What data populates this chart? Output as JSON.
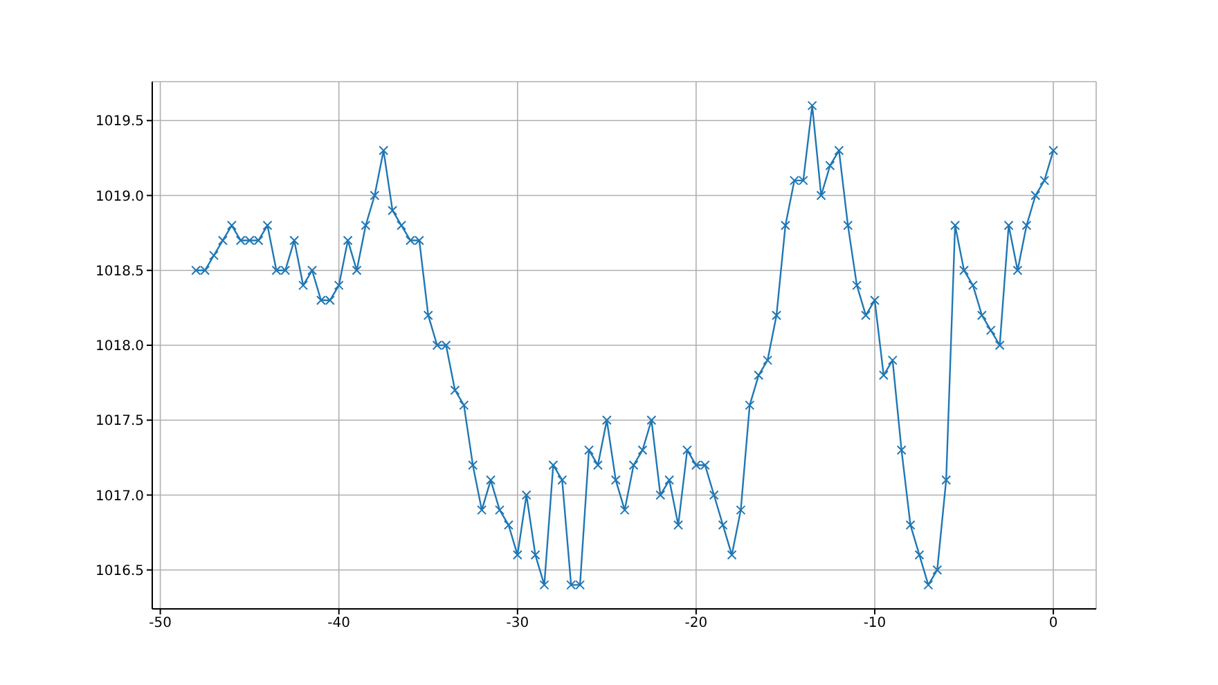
{
  "chart_data": {
    "type": "line",
    "x": [
      -48,
      -47.5,
      -47,
      -46.5,
      -46,
      -45.5,
      -45,
      -44.5,
      -44,
      -43.5,
      -43,
      -42.5,
      -42,
      -41.5,
      -41,
      -40.5,
      -40,
      -39.5,
      -39,
      -38.5,
      -38,
      -37.5,
      -37,
      -36.5,
      -36,
      -35.5,
      -35,
      -34.5,
      -34,
      -33.5,
      -33,
      -32.5,
      -32,
      -31.5,
      -31,
      -30.5,
      -30,
      -29.5,
      -29,
      -28.5,
      -28,
      -27.5,
      -27,
      -26.5,
      -26,
      -25.5,
      -25,
      -24.5,
      -24,
      -23.5,
      -23,
      -22.5,
      -22,
      -21.5,
      -21,
      -20.5,
      -20,
      -19.5,
      -19,
      -18.5,
      -18,
      -17.5,
      -17,
      -16.5,
      -16,
      -15.5,
      -15,
      -14.5,
      -14,
      -13.5,
      -13,
      -12.5,
      -12,
      -11.5,
      -11,
      -10.5,
      -10,
      -9.5,
      -9,
      -8.5,
      -8,
      -7.5,
      -7,
      -6.5,
      -6,
      -5.5,
      -5,
      -4.5,
      -4,
      -3.5,
      -3,
      -2.5,
      -2,
      -1.5,
      -1,
      -0.5,
      0
    ],
    "series": [
      {
        "color": "#1f77b4",
        "values": [
          1018.5,
          1018.5,
          1018.6,
          1018.7,
          1018.8,
          1018.7,
          1018.7,
          1018.7,
          1018.8,
          1018.5,
          1018.5,
          1018.7,
          1018.4,
          1018.5,
          1018.3,
          1018.3,
          1018.4,
          1018.7,
          1018.5,
          1018.8,
          1019.0,
          1019.3,
          1018.9,
          1018.8,
          1018.7,
          1018.7,
          1018.2,
          1018.0,
          1018.0,
          1017.7,
          1017.6,
          1017.2,
          1016.9,
          1017.1,
          1016.9,
          1016.8,
          1016.6,
          1017.0,
          1016.6,
          1016.4,
          1017.2,
          1017.1,
          1016.4,
          1016.4,
          1017.3,
          1017.2,
          1017.5,
          1017.1,
          1016.9,
          1017.2,
          1017.3,
          1017.5,
          1017.0,
          1017.1,
          1016.8,
          1017.3,
          1017.2,
          1017.2,
          1017.0,
          1016.8,
          1016.6,
          1016.9,
          1017.6,
          1017.8,
          1017.9,
          1018.2,
          1018.8,
          1019.1,
          1019.1,
          1019.6,
          1019.0,
          1019.2,
          1019.3,
          1018.8,
          1018.4,
          1018.2,
          1018.3,
          1017.8,
          1017.9,
          1017.3,
          1016.8,
          1016.6,
          1016.4,
          1016.5,
          1017.1,
          1018.8,
          1018.5,
          1018.4,
          1018.2,
          1018.1,
          1018.0,
          1018.8,
          1018.5,
          1018.8,
          1019.0,
          1019.1,
          1019.3
        ]
      }
    ],
    "xlim": [
      -50.45,
      2.4
    ],
    "xticks": [
      -50,
      -40,
      -30,
      -20,
      -10,
      0
    ],
    "ylim": [
      1016.24,
      1019.76
    ],
    "yticks": [
      1016.5,
      {
        "value": 1017,
        "label": "1017.0"
      },
      1017.5,
      {
        "value": 1018,
        "label": "1018.0"
      },
      1018.5,
      {
        "value": 1019,
        "label": "1019.0"
      },
      1019.5
    ],
    "grid": true,
    "marker": "cross",
    "line_style": "solid"
  }
}
